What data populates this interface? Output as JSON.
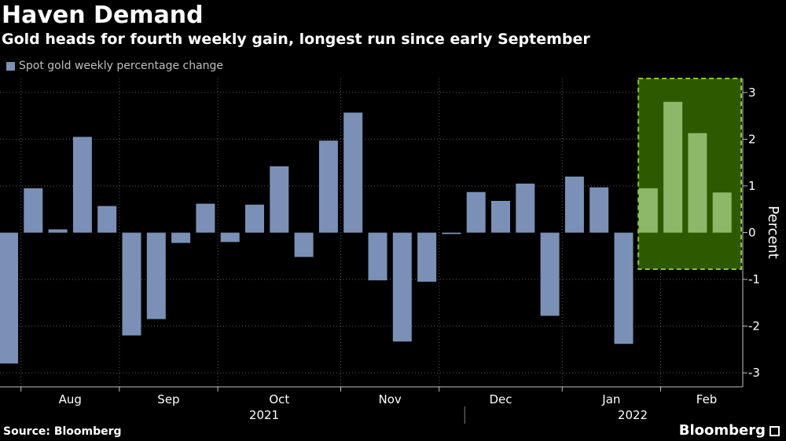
{
  "header": {
    "title": "Haven Demand",
    "subtitle": "Gold heads for fourth weekly gain, longest run since early September"
  },
  "legend": {
    "label": "Spot gold weekly percentage change",
    "color": "#7a90b6"
  },
  "footer": {
    "source": "Source: Bloomberg",
    "brand": "Bloomberg"
  },
  "colors": {
    "background": "#000000",
    "bar": "#7a90b6",
    "highlight_bar": "#8db86a",
    "highlight_fill": "#2d5a00",
    "highlight_border": "#8ac23a",
    "grid": "#5a5a5a",
    "axis_text": "#ffffff"
  },
  "chart_data": {
    "type": "bar",
    "title": "Haven Demand",
    "subtitle": "Gold heads for fourth weekly gain, longest run since early September",
    "ylabel": "Percent",
    "xlabel": "",
    "ylim": [
      -3.3,
      3.3
    ],
    "yticks": [
      -3,
      -2,
      -1,
      0,
      1,
      2,
      3
    ],
    "y_axis_position": "right",
    "grid": true,
    "legend_position": "top-left",
    "series": [
      {
        "name": "Spot gold weekly percentage change",
        "values": [
          -2.8,
          0.95,
          0.07,
          2.05,
          0.57,
          -2.2,
          -1.85,
          -0.22,
          0.62,
          -0.2,
          0.6,
          1.42,
          -0.52,
          1.97,
          2.57,
          -1.02,
          -2.33,
          -1.05,
          -0.03,
          0.87,
          0.68,
          1.05,
          -1.78,
          1.2,
          0.97,
          -2.38,
          0.95,
          2.8,
          2.13,
          0.86
        ]
      }
    ],
    "weeks": [
      "2021-07-30",
      "2021-08-06",
      "2021-08-13",
      "2021-08-20",
      "2021-08-27",
      "2021-09-03",
      "2021-09-10",
      "2021-09-17",
      "2021-09-24",
      "2021-10-01",
      "2021-10-08",
      "2021-10-15",
      "2021-10-22",
      "2021-10-29",
      "2021-11-05",
      "2021-11-12",
      "2021-11-19",
      "2021-11-26",
      "2021-12-03",
      "2021-12-10",
      "2021-12-17",
      "2021-12-24",
      "2021-12-31",
      "2022-01-07",
      "2022-01-14",
      "2022-01-21",
      "2022-01-28",
      "2022-02-04",
      "2022-02-11",
      "2022-02-18"
    ],
    "month_labels": [
      "Aug",
      "Sep",
      "Oct",
      "Nov",
      "Dec",
      "Jan",
      "Feb"
    ],
    "year_labels": [
      "2021",
      "2022"
    ],
    "highlight": {
      "start_index": 26,
      "end_index": 29,
      "y_range": [
        -0.78,
        3.3
      ]
    }
  }
}
